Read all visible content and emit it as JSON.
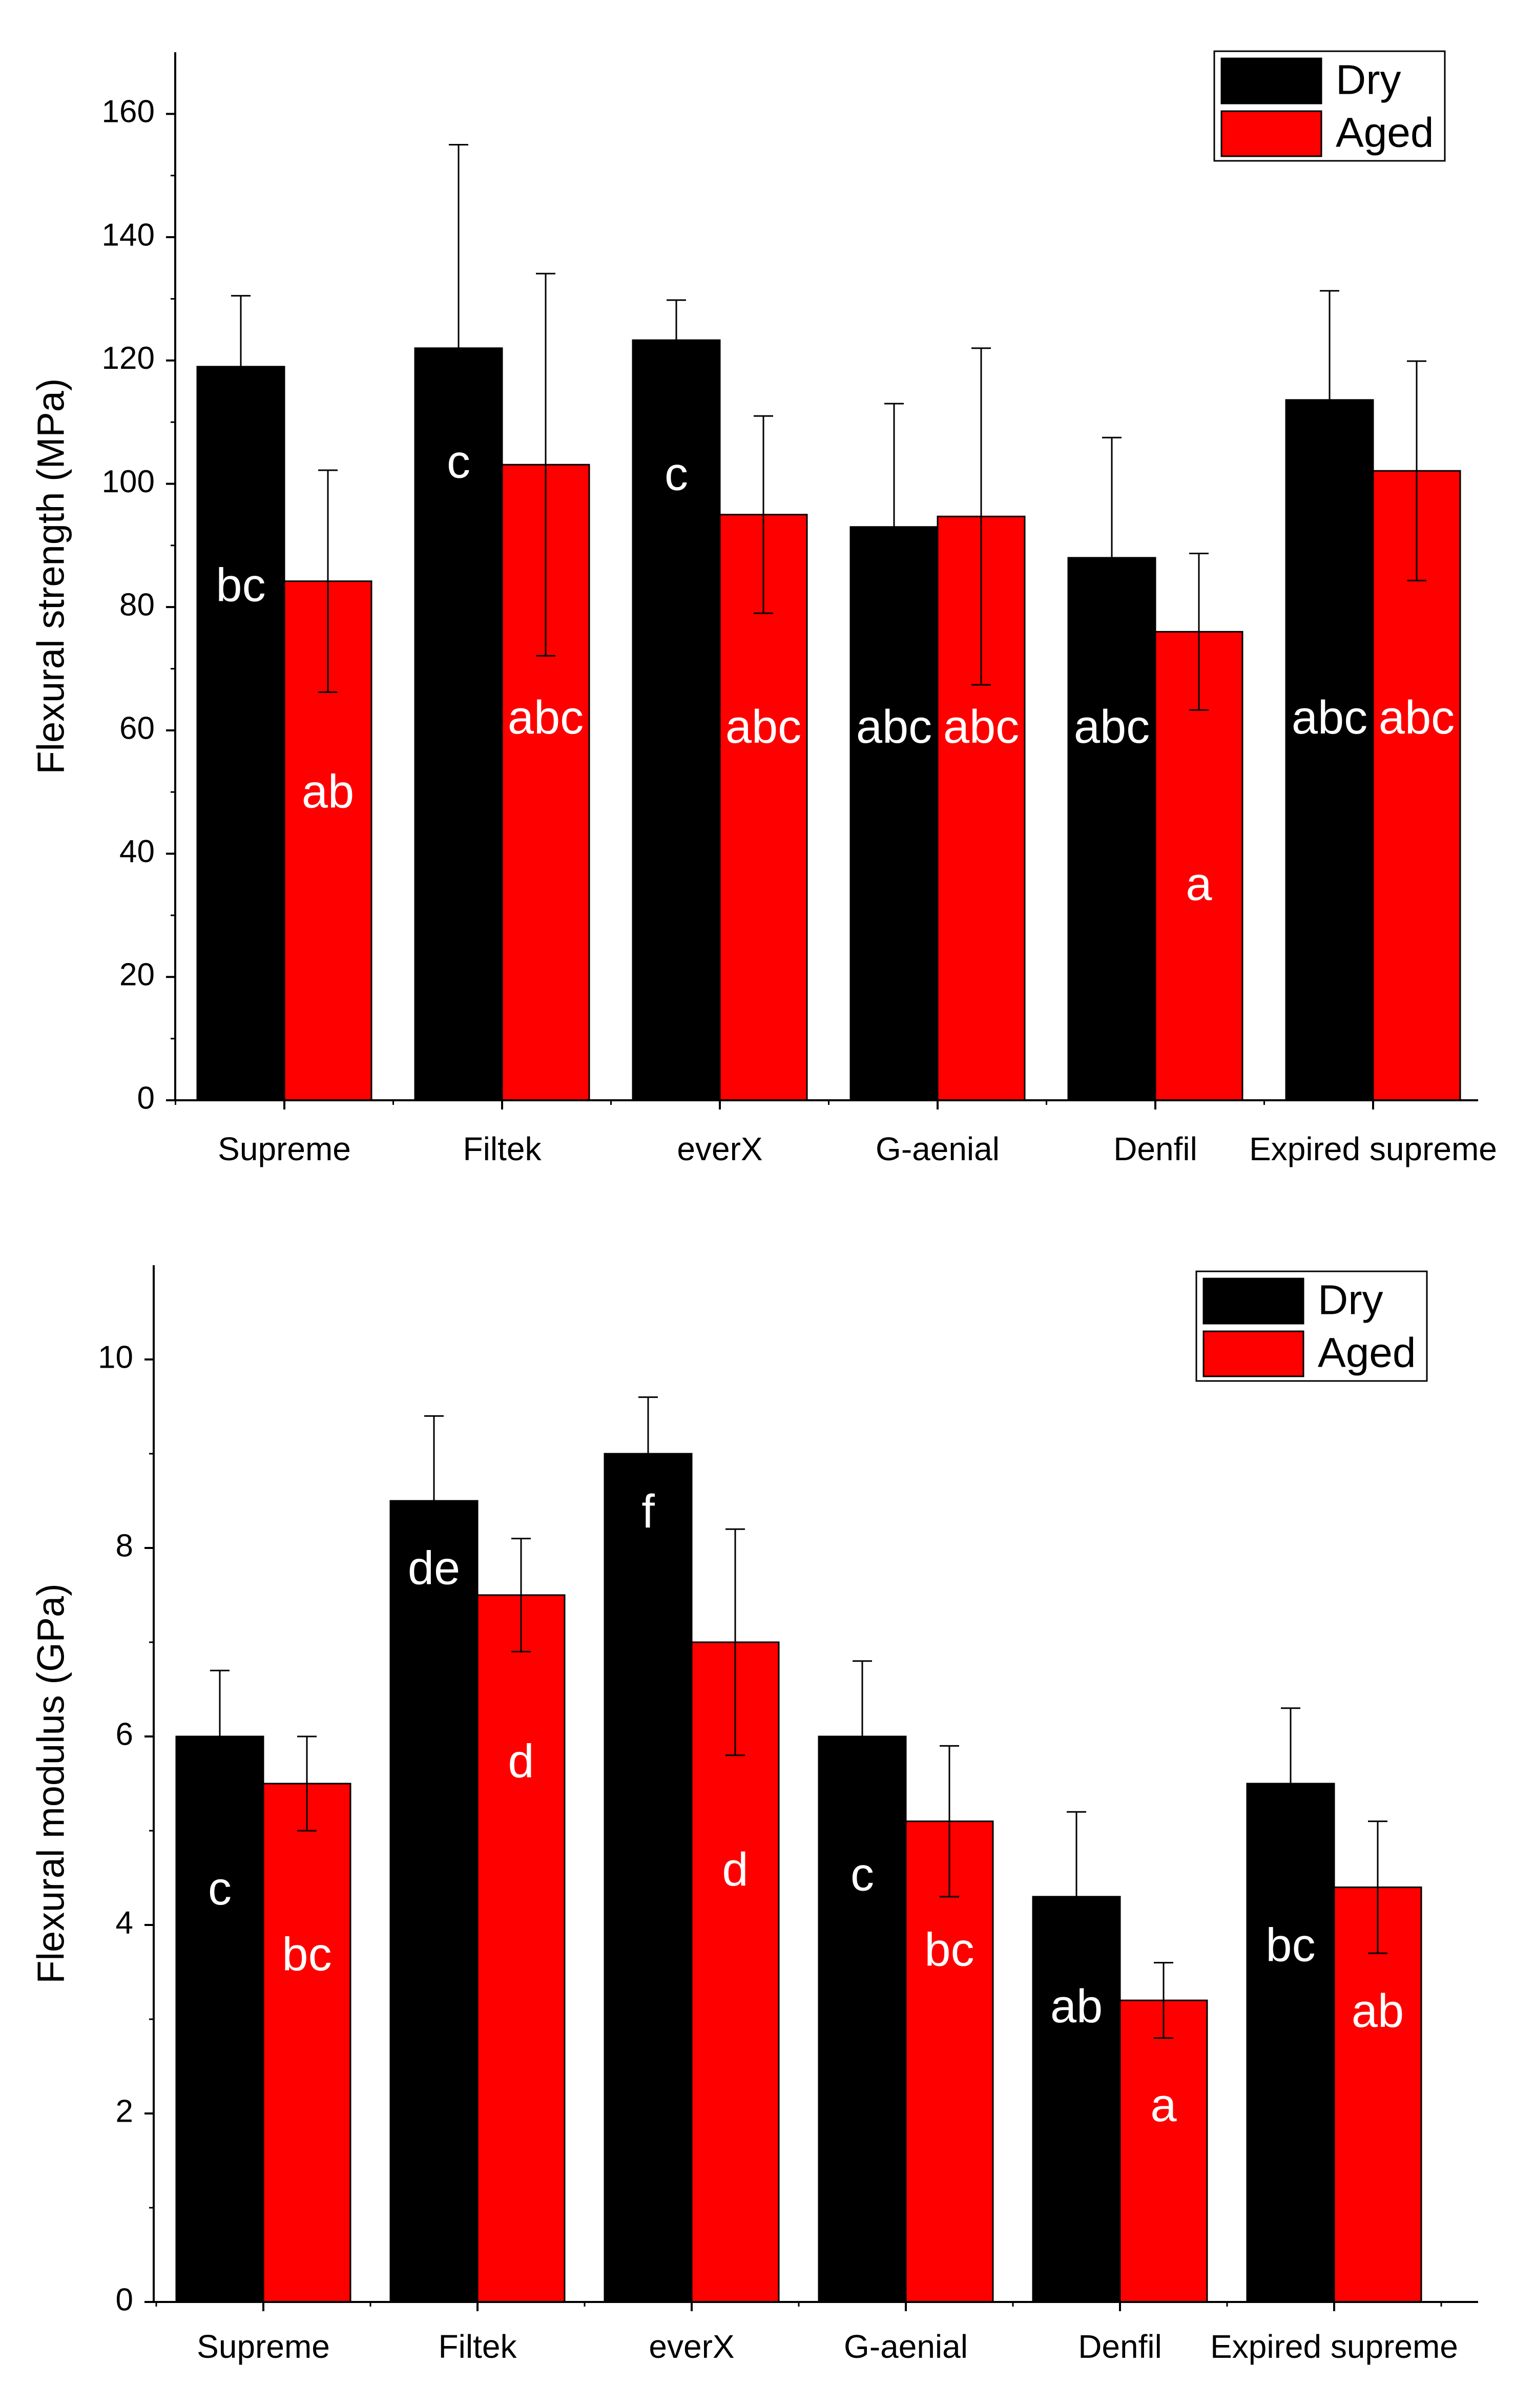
{
  "chart_data": [
    {
      "type": "bar",
      "title": "",
      "xlabel": "",
      "ylabel": "Flexural strength (MPa)",
      "ylim": [
        0,
        170
      ],
      "yticks": [
        0,
        20,
        40,
        60,
        80,
        100,
        120,
        140,
        160
      ],
      "categories": [
        "Supreme",
        "Filtek",
        "everX",
        "G-aenial",
        "Denfil",
        "Expired supreme"
      ],
      "legend_position": "top-right",
      "series": [
        {
          "name": "Dry",
          "color": "#000000",
          "label_color": "#ffffff",
          "values": [
            119,
            122,
            123.3,
            93,
            88,
            113.6
          ],
          "errors": [
            11.5,
            33,
            6.5,
            20,
            19.5,
            17.7
          ],
          "letters": [
            "bc",
            "c",
            "c",
            "abc",
            "abc",
            "abc"
          ],
          "letter_y": [
            83,
            103,
            101,
            60,
            60,
            61.5
          ]
        },
        {
          "name": "Aged",
          "color": "#ff0000",
          "label_color": "#ffffff",
          "values": [
            84.2,
            103.1,
            95,
            94.7,
            76,
            102.1
          ],
          "errors": [
            18,
            31,
            16,
            27.3,
            12.7,
            17.8
          ],
          "letters": [
            "ab",
            "abc",
            "abc",
            "abc",
            "a",
            "abc"
          ],
          "letter_y": [
            49.5,
            61.5,
            60,
            60,
            34.5,
            61.5
          ]
        }
      ]
    },
    {
      "type": "bar",
      "title": "",
      "xlabel": "",
      "ylabel": "Flexural modulus (GPa)",
      "ylim": [
        0,
        11
      ],
      "yticks": [
        0,
        2,
        4,
        6,
        8,
        10
      ],
      "categories": [
        "Supreme",
        "Filtek",
        "everX",
        "G-aenial",
        "Denfil",
        "Expired supreme"
      ],
      "legend_position": "top-right",
      "series": [
        {
          "name": "Dry",
          "color": "#000000",
          "label_color": "#ffffff",
          "values": [
            6,
            8.5,
            9,
            6,
            4.3,
            5.5
          ],
          "errors": [
            0.7,
            0.9,
            0.6,
            0.8,
            0.9,
            0.8
          ],
          "letters": [
            "c",
            "de",
            "f",
            "c",
            "ab",
            "bc"
          ],
          "letter_y": [
            4.35,
            7.75,
            8.35,
            4.5,
            3.1,
            3.75
          ]
        },
        {
          "name": "Aged",
          "color": "#ff0000",
          "label_color": "#ffffff",
          "values": [
            5.5,
            7.5,
            7,
            5.1,
            3.2,
            4.4
          ],
          "errors": [
            0.5,
            0.6,
            1.2,
            0.8,
            0.4,
            0.7
          ],
          "letters": [
            "bc",
            "d",
            "d",
            "bc",
            "a",
            "ab"
          ],
          "letter_y": [
            3.65,
            5.7,
            4.55,
            3.7,
            2.05,
            3.05
          ]
        }
      ]
    }
  ]
}
